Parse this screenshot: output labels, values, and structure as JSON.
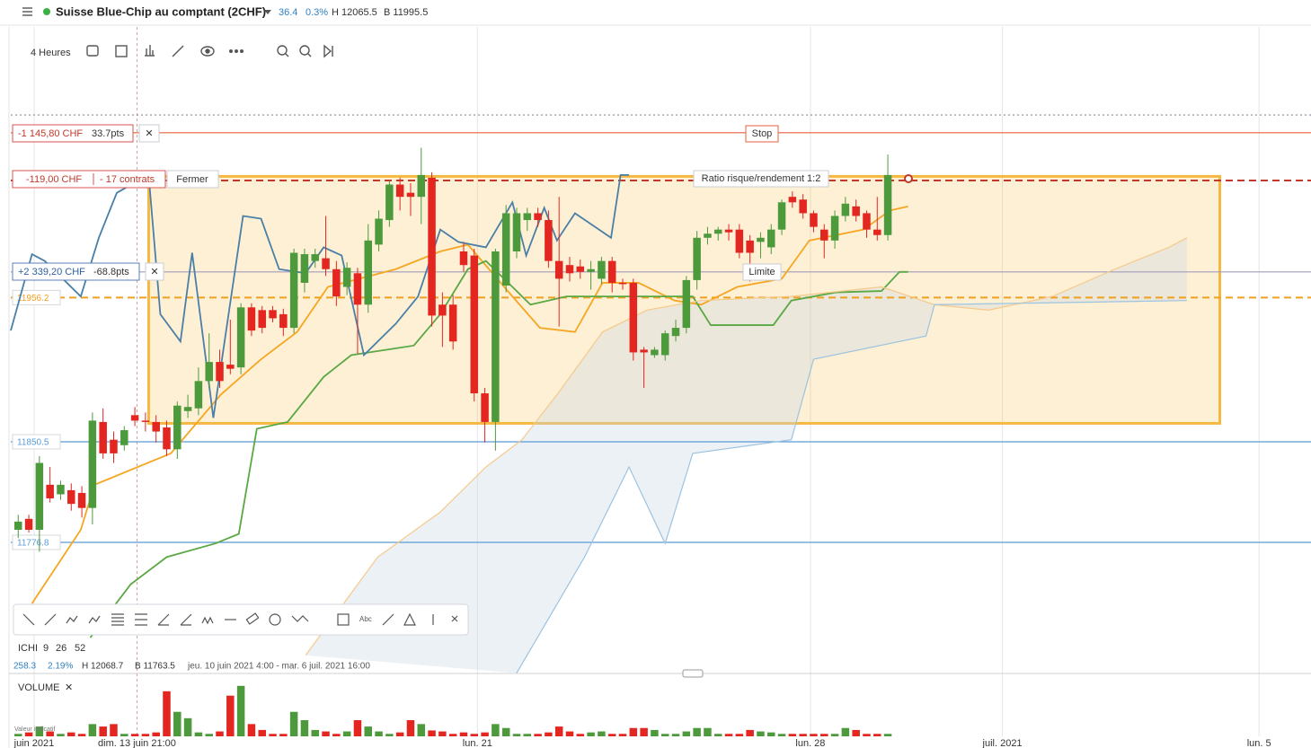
{
  "header": {
    "instrument": "Suisse Blue-Chip au comptant (2CHF)",
    "change": "36.4",
    "change_pct": "0.3%",
    "high": "H 12065.5",
    "low": "B 11995.5"
  },
  "toolbar": {
    "interval": "4 Heures"
  },
  "orders": {
    "stop": {
      "pnl": "-1 145,80 CHF",
      "pts": "33.7pts",
      "tag": "Stop"
    },
    "entry": {
      "pnl": "-119,00 CHF",
      "size": "- 17 contrats",
      "close": "Fermer",
      "ratio": "Ratio risque/rendement 1:2"
    },
    "limit": {
      "pnl": "+2 339,20 CHF",
      "pts": "-68.8pts",
      "tag": "Limite"
    }
  },
  "indicator": {
    "name": "ICHI",
    "p1": "9",
    "p2": "26",
    "p3": "52",
    "value": "258.3",
    "pct": "2.19%",
    "high": "H 12068.7",
    "low": "B 11763.5",
    "range": "jeu. 10 juin 2021 4:00 - mar. 6 juil. 2021 16:00"
  },
  "volume_panel": {
    "title": "VOLUME",
    "note": "Valeur indicatif"
  },
  "chart_data": {
    "type": "candlestick",
    "xlim": [
      -0.7,
      121.9
    ],
    "ylim": [
      11680.7,
      12092
    ],
    "vlim": [
      0,
      110
    ],
    "xticks": [
      {
        "value": 1.5,
        "label": "juin 2021"
      },
      {
        "value": 11.2,
        "label": "dim. 13 juin 21:00"
      },
      {
        "value": 43.3,
        "label": "lun. 21"
      },
      {
        "value": 74.7,
        "label": "lun. 28"
      },
      {
        "value": 92.8,
        "label": "juil. 2021"
      },
      {
        "value": 117.0,
        "label": "lun. 5"
      }
    ],
    "up_color": "#4c9a3b",
    "down_color": "#e3261f",
    "candles": [
      [
        11786,
        11797,
        11780,
        11792
      ],
      [
        11794,
        11797,
        11784,
        11786
      ],
      [
        11786,
        11840,
        11770,
        11835
      ],
      [
        11819,
        11832,
        11806,
        11809
      ],
      [
        11812,
        11822,
        11808,
        11819
      ],
      [
        11815,
        11820,
        11800,
        11805
      ],
      [
        11813,
        11818,
        11795,
        11802
      ],
      [
        11802,
        11872,
        11790,
        11866
      ],
      [
        11865,
        11875,
        11838,
        11842
      ],
      [
        11852,
        11858,
        11835,
        11842
      ],
      [
        11848,
        11862,
        11844,
        11859
      ],
      [
        11870,
        11876,
        11862,
        11866
      ],
      [
        11866,
        11872,
        11858,
        11865
      ],
      [
        11865,
        11870,
        11850,
        11858
      ],
      [
        11861,
        11866,
        11840,
        11845
      ],
      [
        11845,
        11880,
        11838,
        11877
      ],
      [
        11873,
        11885,
        11868,
        11876
      ],
      [
        11875,
        11905,
        11870,
        11895
      ],
      [
        11895,
        11930,
        11890,
        11909
      ],
      [
        11909,
        11918,
        11890,
        11895
      ],
      [
        11907,
        11940,
        11900,
        11904
      ],
      [
        11905,
        11952,
        11900,
        11949
      ],
      [
        11949,
        11952,
        11928,
        11932
      ],
      [
        11947,
        11950,
        11930,
        11934
      ],
      [
        11947,
        11950,
        11938,
        11941
      ],
      [
        11944,
        11948,
        11928,
        11934
      ],
      [
        11934,
        11992,
        11930,
        11989
      ],
      [
        11967,
        11992,
        11960,
        11988
      ],
      [
        11983,
        11992,
        11978,
        11988
      ],
      [
        11985,
        12016,
        11972,
        11977
      ],
      [
        11977,
        11983,
        11950,
        11957
      ],
      [
        11964,
        11982,
        11958,
        11978
      ],
      [
        11974,
        11978,
        11915,
        11951
      ],
      [
        11951,
        12010,
        11945,
        11998
      ],
      [
        11995,
        12020,
        11990,
        12014
      ],
      [
        12013,
        12042,
        12008,
        12039
      ],
      [
        12039,
        12044,
        12020,
        12030
      ],
      [
        12033,
        12040,
        12016,
        12030
      ],
      [
        12030,
        12066,
        12010,
        12046
      ],
      [
        12044,
        12048,
        11935,
        11943
      ],
      [
        11951,
        11960,
        11920,
        11943
      ],
      [
        11951,
        11958,
        11918,
        11924
      ],
      [
        11990,
        11997,
        11975,
        11980
      ],
      [
        11987,
        11992,
        11880,
        11886
      ],
      [
        11886,
        11890,
        11850,
        11865
      ],
      [
        11865,
        11992,
        11844,
        11990
      ],
      [
        11965,
        12024,
        11960,
        12018
      ],
      [
        11990,
        12022,
        11985,
        12018
      ],
      [
        12013,
        12022,
        12005,
        12018
      ],
      [
        12018,
        12022,
        12008,
        12013
      ],
      [
        12013,
        12020,
        11978,
        11983
      ],
      [
        11983,
        12030,
        11935,
        11970
      ],
      [
        11980,
        11986,
        11968,
        11974
      ],
      [
        11979,
        11984,
        11970,
        11975
      ],
      [
        11975,
        11983,
        11962,
        11977
      ],
      [
        11970,
        11986,
        11966,
        11983
      ],
      [
        11983,
        11986,
        11960,
        11967
      ],
      [
        11967,
        11970,
        11962,
        11966
      ],
      [
        11967,
        11970,
        11910,
        11916
      ],
      [
        11918,
        11920,
        11890,
        11916
      ],
      [
        11914,
        11920,
        11912,
        11918
      ],
      [
        11914,
        11932,
        11910,
        11930
      ],
      [
        11928,
        11940,
        11924,
        11934
      ],
      [
        11934,
        11972,
        11930,
        11969
      ],
      [
        11969,
        12005,
        11962,
        12000
      ],
      [
        12000,
        12008,
        11995,
        12003
      ],
      [
        12003,
        12008,
        11998,
        12006
      ],
      [
        12006,
        12010,
        11998,
        12004
      ],
      [
        12006,
        12010,
        11985,
        11989
      ],
      [
        11998,
        12002,
        11968,
        11989
      ],
      [
        11997,
        12004,
        11985,
        12000
      ],
      [
        11993,
        12010,
        11988,
        12006
      ],
      [
        12006,
        12028,
        12002,
        12026
      ],
      [
        12030,
        12034,
        12022,
        12026
      ],
      [
        12028,
        12032,
        12014,
        12018
      ],
      [
        12018,
        12020,
        12004,
        12008
      ],
      [
        12006,
        12010,
        11985,
        11998
      ],
      [
        11998,
        12020,
        11992,
        12016
      ],
      [
        12016,
        12030,
        12012,
        12025
      ],
      [
        12023,
        12028,
        12012,
        12016
      ],
      [
        12018,
        12020,
        12000,
        12006
      ],
      [
        12006,
        12030,
        11998,
        12002
      ],
      [
        12002,
        12061,
        11998,
        12046
      ]
    ],
    "volume": [
      5,
      8,
      20,
      10,
      5,
      8,
      5,
      25,
      20,
      25,
      5,
      5,
      5,
      8,
      92,
      50,
      37,
      8,
      5,
      10,
      83,
      103,
      25,
      13,
      5,
      5,
      50,
      33,
      13,
      10,
      5,
      10,
      33,
      20,
      10,
      5,
      8,
      33,
      25,
      12,
      10,
      5,
      8,
      5,
      8,
      25,
      17,
      5,
      5,
      5,
      8,
      20,
      10,
      5,
      8,
      10,
      5,
      5,
      17,
      17,
      13,
      5,
      5,
      10,
      17,
      17,
      5,
      5,
      5,
      13,
      10,
      8,
      5,
      5,
      5,
      5,
      5,
      5,
      17,
      13,
      5,
      5,
      5
    ],
    "lines": [
      {
        "color": "#f5a623",
        "x": [
          1.3,
          5.9,
          7.2,
          14.4,
          19.1,
          22.9,
          26.3,
          29.2,
          35.6,
          39.8,
          42.4,
          46.6,
          49.2,
          52.5,
          55.1,
          58.5,
          61.9,
          64.4,
          67.8,
          72.0,
          74.6,
          79.7,
          82.2,
          83.9
        ],
        "values": [
          11732,
          11786,
          11819,
          11842,
          11885,
          11911,
          11931,
          11964,
          11977,
          11990,
          11995,
          11957,
          11934,
          11931,
          11967,
          11967,
          11954,
          11951,
          11964,
          11970,
          11998,
          12006,
          12020,
          12023
        ]
      },
      {
        "color": "#5aa845",
        "x": [
          6.8,
          10.6,
          14.0,
          18.6,
          20.8,
          22.5,
          25.4,
          28.8,
          31.4,
          37.3,
          39.8,
          42.4,
          44.1,
          46.6,
          48.3,
          51.7,
          63.6,
          65.3,
          71.2,
          72.9,
          77.1,
          81.4,
          83.1,
          83.9
        ],
        "values": [
          11707,
          11746,
          11766,
          11776,
          11783,
          11860,
          11865,
          11898,
          11914,
          11921,
          11944,
          11977,
          11983,
          11964,
          11951,
          11957,
          11957,
          11936,
          11936,
          11954,
          11960,
          11961,
          11975,
          11975
        ]
      },
      {
        "color": "#4a7fa8",
        "x": [
          -0.7,
          1.3,
          2.5,
          5.9,
          7.6,
          9.3,
          12.3,
          13.4,
          15.3,
          16.4,
          18.4,
          21.2,
          22.9,
          24.6,
          27.1,
          28.8,
          30.5,
          32.6,
          33.9,
          35.6,
          37.7,
          39.8,
          41.5,
          44.1,
          46.6,
          47.9,
          49.6,
          50.8,
          52.5,
          55.9,
          56.8,
          57.6
        ],
        "values": [
          11932,
          11988,
          11983,
          11957,
          12000,
          12033,
          12046,
          11944,
          11924,
          11989,
          11868,
          12016,
          12014,
          11977,
          11974,
          11993,
          11987,
          11914,
          11924,
          11937,
          11957,
          12006,
          11997,
          11993,
          12026,
          11987,
          12022,
          11998,
          12018,
          12000,
          12046,
          12046
        ]
      },
      {
        "color": "#f6c98a",
        "x": [
          27.1,
          33.9,
          39.8,
          44.1,
          47.5,
          50.8,
          55.1,
          59.3,
          64.4,
          72.9,
          81.4,
          86.4,
          91.5,
          97.5,
          103.4,
          108.5,
          110.2
        ],
        "values": [
          11694,
          11766,
          11799,
          11832,
          11852,
          11885,
          11931,
          11947,
          11954,
          11957,
          11964,
          11951,
          11947,
          11957,
          11977,
          11993,
          12000
        ]
      },
      {
        "color": "#9cc3e0",
        "x": [
          47.0,
          53.4,
          57.6,
          61.0,
          63.6,
          72.9,
          75.0,
          85.6,
          86.4,
          110.2
        ],
        "values": [
          11681,
          11766,
          11832,
          11776,
          11842,
          11852,
          11911,
          11928,
          11951,
          11954
        ]
      }
    ],
    "position_box": {
      "top": 12045,
      "bottom": 11864,
      "x_start": 12.3,
      "x_end": 113.3,
      "color": "#f5b942"
    },
    "levels": [
      {
        "value": 12090,
        "color": "#8a8a9a",
        "style": "dotted"
      },
      {
        "value": 12077,
        "color": "#e8603c",
        "style": "solid"
      },
      {
        "value": 12042,
        "color": "#c0392b",
        "style": "dashed"
      },
      {
        "value": 11975,
        "color": "#a49bbd",
        "style": "solid"
      },
      {
        "value": 11956.2,
        "color": "#f0a020",
        "style": "dashed"
      },
      {
        "value": 11850.5,
        "color": "#5b9bd5",
        "style": "solid"
      },
      {
        "value": 11776.8,
        "color": "#5b9bd5",
        "style": "solid"
      }
    ]
  }
}
